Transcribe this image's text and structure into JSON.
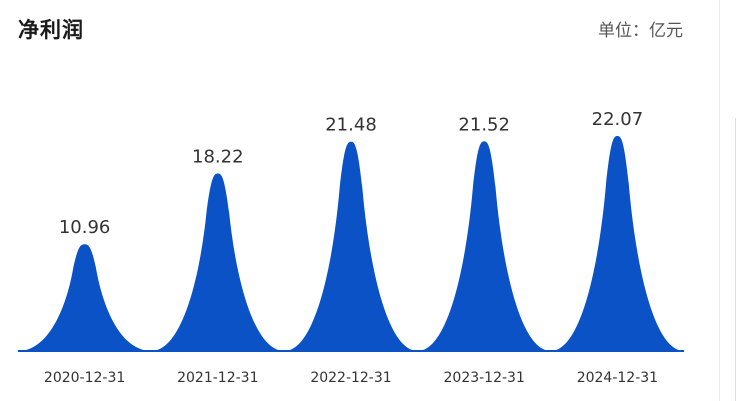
{
  "header": {
    "title": "净利润",
    "unit": "单位：亿元"
  },
  "chart_data": {
    "type": "area",
    "categories": [
      "2020-12-31",
      "2021-12-31",
      "2022-12-31",
      "2023-12-31",
      "2024-12-31"
    ],
    "values": [
      10.96,
      18.22,
      21.48,
      21.52,
      22.07
    ],
    "value_labels": [
      "10.96",
      "18.22",
      "21.48",
      "21.52",
      "22.07"
    ],
    "title": "净利润",
    "unit": "单位：亿元",
    "ylim": [
      0,
      22.07
    ],
    "grid": false,
    "legend": "none",
    "color": "#0a52c6"
  }
}
